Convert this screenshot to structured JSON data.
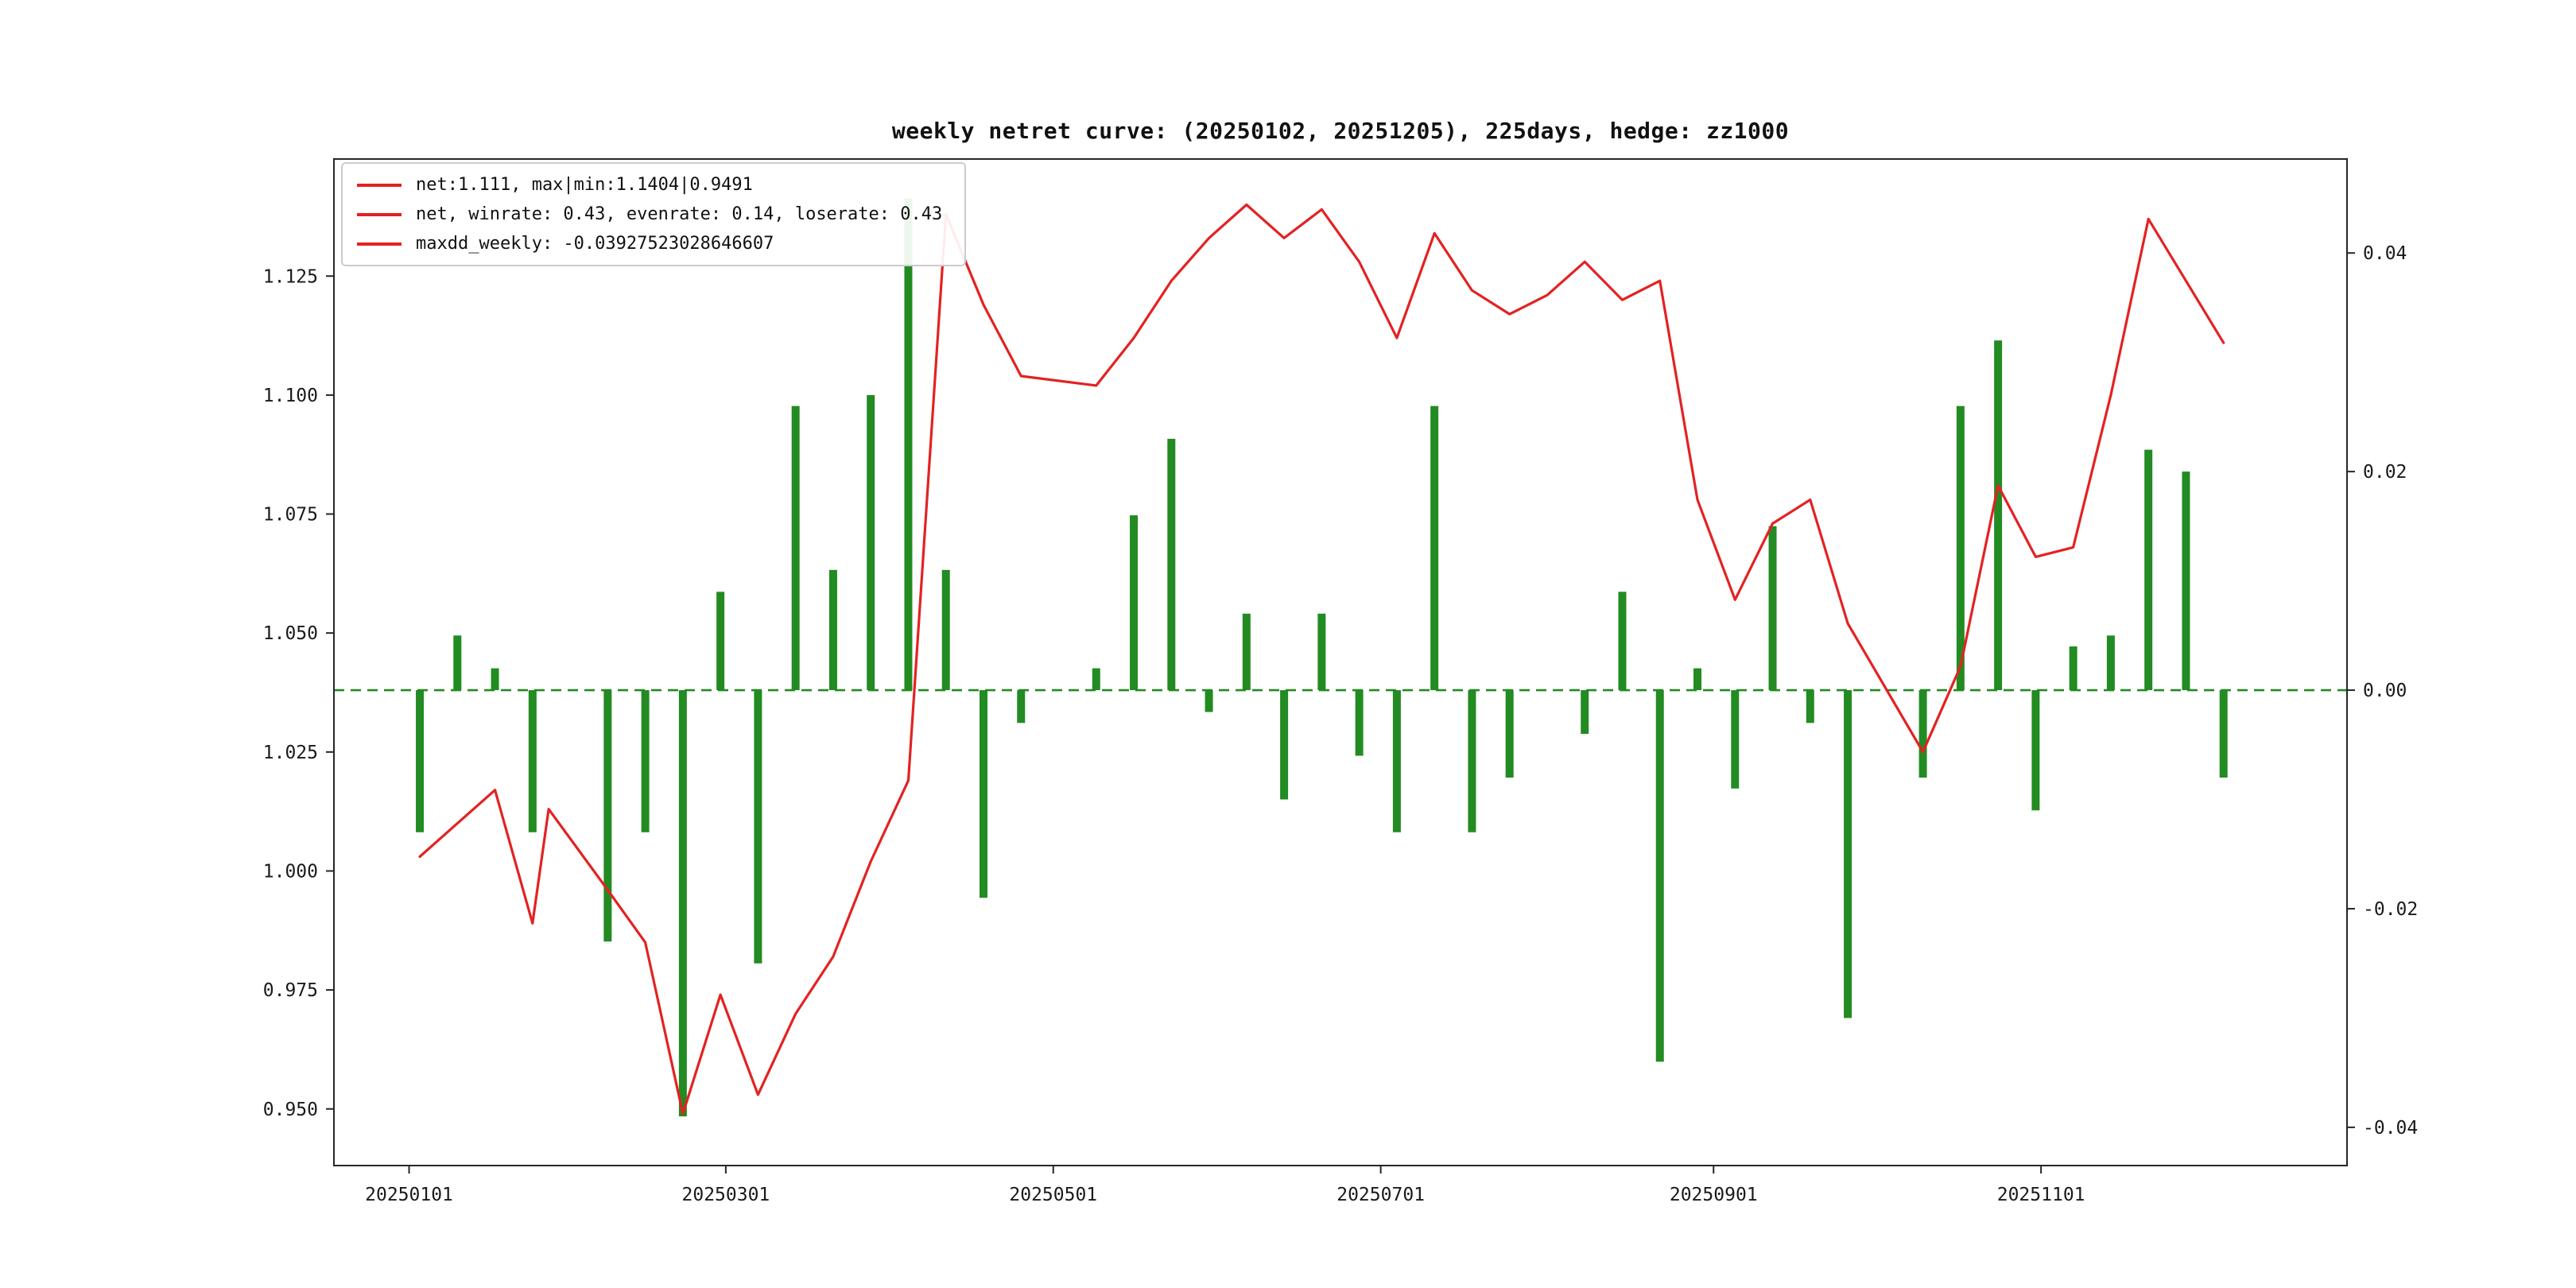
{
  "window": {
    "background": "#ffffff"
  },
  "chart_data": {
    "type": "line+bar",
    "title": "weekly netret curve: (20250102, 20251205), 225days, hedge: zz1000",
    "legend": [
      "net:1.111, max|min:1.1404|0.9491",
      "net, winrate: 0.43, evenrate: 0.14, loserate: 0.43",
      "maxdd_weekly: -0.03927523028646607"
    ],
    "x_dates": [
      "20250103",
      "20250110",
      "20250117",
      "20250124",
      "20250127",
      "20250207",
      "20250214",
      "20250221",
      "20250228",
      "20250307",
      "20250314",
      "20250321",
      "20250328",
      "20250404",
      "20250411",
      "20250418",
      "20250425",
      "20250509",
      "20250516",
      "20250523",
      "20250530",
      "20250606",
      "20250613",
      "20250620",
      "20250627",
      "20250704",
      "20250711",
      "20250718",
      "20250725",
      "20250801",
      "20250808",
      "20250815",
      "20250822",
      "20250829",
      "20250905",
      "20250912",
      "20250919",
      "20250926",
      "20251010",
      "20251017",
      "20251024",
      "20251031",
      "20251107",
      "20251114",
      "20251121",
      "20251128",
      "20251205"
    ],
    "series": [
      {
        "name": "net",
        "type": "line",
        "axis": "left",
        "color": "#e32222",
        "values": [
          1.003,
          1.01,
          1.017,
          0.989,
          1.013,
          0.996,
          0.985,
          0.949,
          0.974,
          0.953,
          0.97,
          0.982,
          1.002,
          1.019,
          1.138,
          1.119,
          1.104,
          1.102,
          1.112,
          1.124,
          1.133,
          1.14,
          1.133,
          1.139,
          1.128,
          1.112,
          1.134,
          1.122,
          1.117,
          1.121,
          1.128,
          1.12,
          1.124,
          1.078,
          1.057,
          1.073,
          1.078,
          1.052,
          1.025,
          1.043,
          1.081,
          1.066,
          1.068,
          1.1,
          1.137,
          1.124,
          1.111
        ]
      },
      {
        "name": "weekly_return",
        "type": "bar",
        "axis": "right",
        "color": "#228b22",
        "values": [
          -0.013,
          0.005,
          0.002,
          -0.013,
          0.0,
          -0.023,
          -0.013,
          -0.039,
          0.009,
          -0.025,
          0.026,
          0.011,
          0.027,
          0.045,
          0.011,
          -0.019,
          -0.003,
          0.002,
          0.016,
          0.023,
          -0.002,
          0.007,
          -0.01,
          0.007,
          -0.006,
          -0.013,
          0.026,
          -0.013,
          -0.008,
          0.0,
          -0.004,
          0.009,
          -0.034,
          0.002,
          -0.009,
          0.015,
          -0.003,
          -0.03,
          -0.008,
          0.026,
          0.032,
          -0.011,
          0.004,
          0.005,
          0.022,
          0.02,
          -0.008
        ]
      }
    ],
    "baseline": {
      "axis": "right",
      "value": 0.0,
      "style": "dashed",
      "color": "#228b22"
    },
    "axes": {
      "x": {
        "tick_labels": [
          "20250101",
          "20250301",
          "20250501",
          "20250701",
          "20250901",
          "20251101"
        ],
        "tick_dates": [
          "20250101",
          "20250301",
          "20250501",
          "20250701",
          "20250901",
          "20251101"
        ],
        "range": [
          "20241218",
          "20251228"
        ]
      },
      "left": {
        "labels": [
          "0.950",
          "0.975",
          "1.000",
          "1.025",
          "1.050",
          "1.075",
          "1.100",
          "1.125"
        ],
        "ticks": [
          0.95,
          0.975,
          1.0,
          1.025,
          1.05,
          1.075,
          1.1,
          1.125
        ],
        "range": [
          0.9381,
          1.1496
        ]
      },
      "right": {
        "labels": [
          "-0.04",
          "-0.02",
          "0.00",
          "0.02",
          "0.04"
        ],
        "ticks": [
          -0.04,
          -0.02,
          0.0,
          0.02,
          0.04
        ],
        "range": [
          -0.0435,
          0.0486
        ]
      }
    },
    "stats": {
      "net_final": 1.111,
      "net_max": 1.1404,
      "net_min": 0.9491,
      "winrate": 0.43,
      "evenrate": 0.14,
      "loserate": 0.43,
      "maxdd_weekly": -0.03927523028646607,
      "days": 225,
      "hedge": "zz1000"
    }
  }
}
